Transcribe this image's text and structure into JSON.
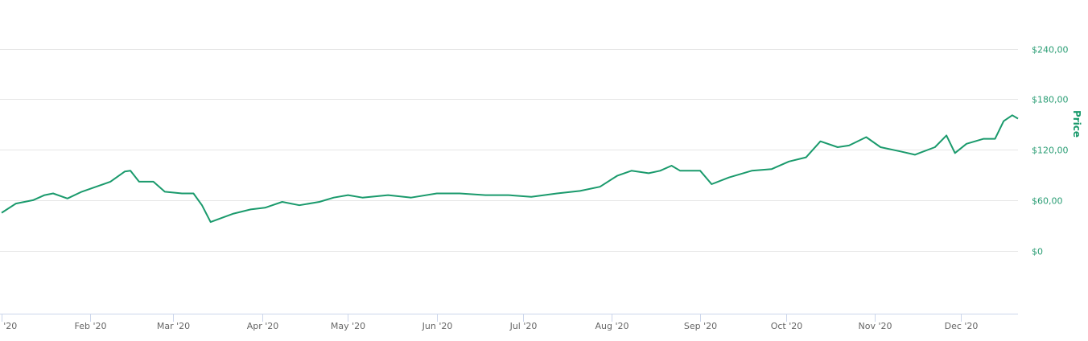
{
  "chart_data": {
    "type": "line",
    "title": "",
    "xlabel": "",
    "ylabel": "Price",
    "ylim": [
      -75,
      300
    ],
    "xlim": [
      "2020-01-01",
      "2020-12-21"
    ],
    "grid": true,
    "legend": "none",
    "line_color": "#1a9a6c",
    "y_ticks": [
      {
        "value": 0,
        "label": "$0"
      },
      {
        "value": 60,
        "label": "$60,00"
      },
      {
        "value": 120,
        "label": "$120,00"
      },
      {
        "value": 180,
        "label": "$180,00"
      },
      {
        "value": 240,
        "label": "$240,00"
      }
    ],
    "x_ticks": [
      {
        "date": "2020-01-01",
        "label": "Jan '20"
      },
      {
        "date": "2020-02-01",
        "label": "Feb '20"
      },
      {
        "date": "2020-03-01",
        "label": "Mar '20"
      },
      {
        "date": "2020-04-01",
        "label": "Apr '20"
      },
      {
        "date": "2020-05-01",
        "label": "May '20"
      },
      {
        "date": "2020-06-01",
        "label": "Jun '20"
      },
      {
        "date": "2020-07-01",
        "label": "Jul '20"
      },
      {
        "date": "2020-08-01",
        "label": "Aug '20"
      },
      {
        "date": "2020-09-01",
        "label": "Sep '20"
      },
      {
        "date": "2020-10-01",
        "label": "Oct '20"
      },
      {
        "date": "2020-11-01",
        "label": "Nov '20"
      },
      {
        "date": "2020-12-01",
        "label": "Dec '20"
      }
    ],
    "series": [
      {
        "x": [
          "2020-01-01",
          "2020-01-06",
          "2020-01-12",
          "2020-01-16",
          "2020-01-19",
          "2020-01-24",
          "2020-01-29",
          "2020-02-03",
          "2020-02-08",
          "2020-02-13",
          "2020-02-15",
          "2020-02-18",
          "2020-02-23",
          "2020-02-27",
          "2020-03-04",
          "2020-03-08",
          "2020-03-11",
          "2020-03-14",
          "2020-03-18",
          "2020-03-22",
          "2020-03-28",
          "2020-04-02",
          "2020-04-08",
          "2020-04-14",
          "2020-04-21",
          "2020-04-26",
          "2020-05-01",
          "2020-05-06",
          "2020-05-15",
          "2020-05-23",
          "2020-06-01",
          "2020-06-09",
          "2020-06-18",
          "2020-06-26",
          "2020-07-04",
          "2020-07-13",
          "2020-07-21",
          "2020-07-28",
          "2020-08-03",
          "2020-08-08",
          "2020-08-14",
          "2020-08-18",
          "2020-08-22",
          "2020-08-25",
          "2020-09-01",
          "2020-09-05",
          "2020-09-11",
          "2020-09-19",
          "2020-09-26",
          "2020-10-02",
          "2020-10-08",
          "2020-10-13",
          "2020-10-19",
          "2020-10-23",
          "2020-10-29",
          "2020-11-03",
          "2020-11-10",
          "2020-11-15",
          "2020-11-22",
          "2020-11-26",
          "2020-11-29",
          "2020-12-03",
          "2020-12-09",
          "2020-12-13",
          "2020-12-16",
          "2020-12-19",
          "2020-12-21"
        ],
        "y": [
          45,
          56,
          60,
          66,
          68,
          62,
          70,
          76,
          82,
          94,
          95,
          82,
          82,
          70,
          68,
          68,
          54,
          34,
          39,
          44,
          49,
          51,
          58,
          54,
          58,
          63,
          66,
          63,
          66,
          63,
          68,
          68,
          66,
          66,
          64,
          68,
          71,
          76,
          89,
          95,
          92,
          95,
          101,
          95,
          95,
          79,
          87,
          95,
          97,
          106,
          111,
          130,
          123,
          125,
          135,
          123,
          118,
          114,
          123,
          137,
          116,
          127,
          133,
          133,
          154,
          161,
          157
        ]
      }
    ]
  }
}
